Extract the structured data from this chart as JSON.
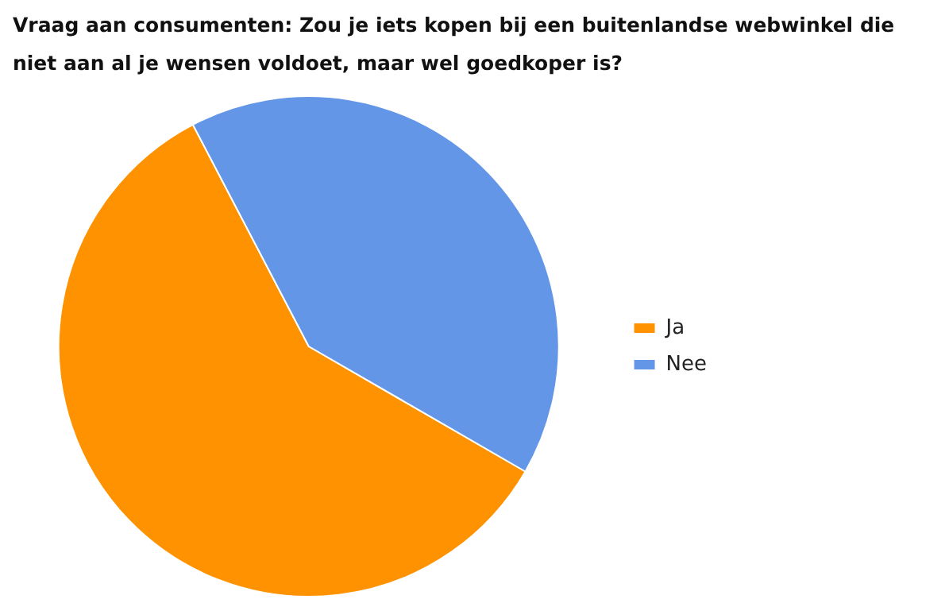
{
  "chart_data": {
    "type": "pie",
    "title": "Vraag aan consumenten: Zou je iets kopen bij een buitenlandse webwinkel die niet aan al je wensen voldoet, maar wel goedkoper is?",
    "categories": [
      "Ja",
      "Nee"
    ],
    "values": [
      59,
      41
    ],
    "colors": [
      "#ff9200",
      "#6496e8"
    ],
    "legend": "right"
  }
}
